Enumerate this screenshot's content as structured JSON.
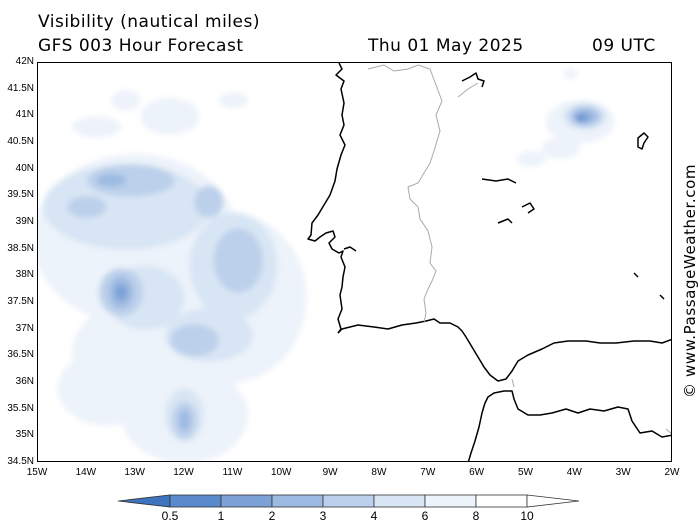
{
  "header": {
    "title": "Visibility (nautical miles)",
    "subtitle": "GFS 003 Hour Forecast",
    "date": "Thu 01 May 2025",
    "time": "09 UTC"
  },
  "credit": "© www.PassageWeather.com",
  "colors": {
    "v05": "#3d74bd",
    "v1": "#5a8acb",
    "v2": "#7ba1d6",
    "v3": "#9dbae2",
    "v4": "#bcd0eb",
    "v6": "#d8e5f4",
    "v8": "#edf3fa",
    "coast": "#000000",
    "border": "#aaaaaa"
  },
  "map": {
    "lon_range": [
      -15,
      -2
    ],
    "lat_range": [
      34.5,
      42
    ],
    "lat_labels": [
      "42N",
      "41.5N",
      "41N",
      "40.5N",
      "40N",
      "39.5N",
      "39N",
      "38.5N",
      "38N",
      "37.5N",
      "37N",
      "36.5N",
      "36N",
      "35.5N",
      "35N",
      "34.5N"
    ],
    "lon_labels": [
      "15W",
      "14W",
      "13W",
      "12W",
      "11W",
      "10W",
      "9W",
      "8W",
      "7W",
      "6W",
      "5W",
      "4W",
      "3W",
      "2W"
    ],
    "fog_patches": [
      {
        "level": "v8",
        "lon": -13.0,
        "lat": 38.7,
        "rlon": 2.1,
        "rlat": 1.6
      },
      {
        "level": "v8",
        "lon": -11.1,
        "lat": 37.6,
        "rlon": 1.6,
        "rlat": 1.6
      },
      {
        "level": "v8",
        "lon": -12.6,
        "lat": 36.6,
        "rlon": 1.7,
        "rlat": 1.0
      },
      {
        "level": "v8",
        "lon": -12.0,
        "lat": 35.4,
        "rlon": 1.3,
        "rlat": 0.9
      },
      {
        "level": "v8",
        "lon": -13.6,
        "lat": 35.9,
        "rlon": 1.0,
        "rlat": 0.7
      },
      {
        "level": "v8",
        "lon": -13.8,
        "lat": 40.8,
        "rlon": 0.5,
        "rlat": 0.2
      },
      {
        "level": "v8",
        "lon": -12.3,
        "lat": 41.0,
        "rlon": 0.6,
        "rlat": 0.35
      },
      {
        "level": "v8",
        "lon": -13.2,
        "lat": 41.3,
        "rlon": 0.3,
        "rlat": 0.2
      },
      {
        "level": "v8",
        "lon": -11.0,
        "lat": 41.3,
        "rlon": 0.3,
        "rlat": 0.15
      },
      {
        "level": "v8",
        "lon": -3.9,
        "lat": 40.9,
        "rlon": 0.7,
        "rlat": 0.4
      },
      {
        "level": "v8",
        "lon": -4.3,
        "lat": 40.4,
        "rlon": 0.4,
        "rlat": 0.2
      },
      {
        "level": "v8",
        "lon": -4.9,
        "lat": 40.2,
        "rlon": 0.3,
        "rlat": 0.15
      },
      {
        "level": "v8",
        "lon": -4.1,
        "lat": 41.8,
        "rlon": 0.15,
        "rlat": 0.1
      },
      {
        "level": "v6",
        "lon": -13.2,
        "lat": 39.3,
        "rlon": 1.7,
        "rlat": 0.8
      },
      {
        "level": "v6",
        "lon": -11.0,
        "lat": 38.2,
        "rlon": 0.9,
        "rlat": 1.0
      },
      {
        "level": "v6",
        "lon": -12.8,
        "lat": 37.6,
        "rlon": 0.8,
        "rlat": 0.6
      },
      {
        "level": "v6",
        "lon": -11.5,
        "lat": 36.9,
        "rlon": 0.9,
        "rlat": 0.5
      },
      {
        "level": "v6",
        "lon": -12.0,
        "lat": 35.4,
        "rlon": 0.4,
        "rlat": 0.5
      },
      {
        "level": "v6",
        "lon": -3.8,
        "lat": 41.0,
        "rlon": 0.45,
        "rlat": 0.25
      },
      {
        "level": "v4",
        "lon": -13.1,
        "lat": 39.8,
        "rlon": 0.9,
        "rlat": 0.3
      },
      {
        "level": "v4",
        "lon": -14.0,
        "lat": 39.3,
        "rlon": 0.4,
        "rlat": 0.2
      },
      {
        "level": "v4",
        "lon": -11.5,
        "lat": 39.4,
        "rlon": 0.3,
        "rlat": 0.3
      },
      {
        "level": "v4",
        "lon": -13.3,
        "lat": 37.7,
        "rlon": 0.45,
        "rlat": 0.45
      },
      {
        "level": "v4",
        "lon": -10.9,
        "lat": 38.3,
        "rlon": 0.5,
        "rlat": 0.6
      },
      {
        "level": "v4",
        "lon": -11.8,
        "lat": 36.8,
        "rlon": 0.5,
        "rlat": 0.3
      },
      {
        "level": "v4",
        "lon": -12.0,
        "lat": 35.3,
        "rlon": 0.25,
        "rlat": 0.35
      },
      {
        "level": "v4",
        "lon": -3.8,
        "lat": 41.0,
        "rlon": 0.35,
        "rlat": 0.2
      },
      {
        "level": "v3",
        "lon": -13.3,
        "lat": 37.7,
        "rlon": 0.25,
        "rlat": 0.3
      },
      {
        "level": "v3",
        "lon": -12.0,
        "lat": 35.3,
        "rlon": 0.12,
        "rlat": 0.2
      },
      {
        "level": "v3",
        "lon": -13.5,
        "lat": 39.8,
        "rlon": 0.3,
        "rlat": 0.12
      },
      {
        "level": "v3",
        "lon": -3.8,
        "lat": 41.0,
        "rlon": 0.25,
        "rlat": 0.14
      },
      {
        "level": "v2",
        "lon": -13.3,
        "lat": 37.7,
        "rlon": 0.12,
        "rlat": 0.15
      },
      {
        "level": "v2",
        "lon": -3.85,
        "lat": 40.98,
        "rlon": 0.15,
        "rlat": 0.09
      },
      {
        "level": "v1",
        "lon": -3.9,
        "lat": 40.95,
        "rlon": 0.08,
        "rlat": 0.05
      }
    ]
  },
  "colorbar": {
    "labels": [
      "0.5",
      "1",
      "2",
      "3",
      "4",
      "6",
      "8",
      "10"
    ],
    "levels": [
      "v05",
      "v1",
      "v2",
      "v3",
      "v4",
      "v6",
      "v8"
    ]
  }
}
